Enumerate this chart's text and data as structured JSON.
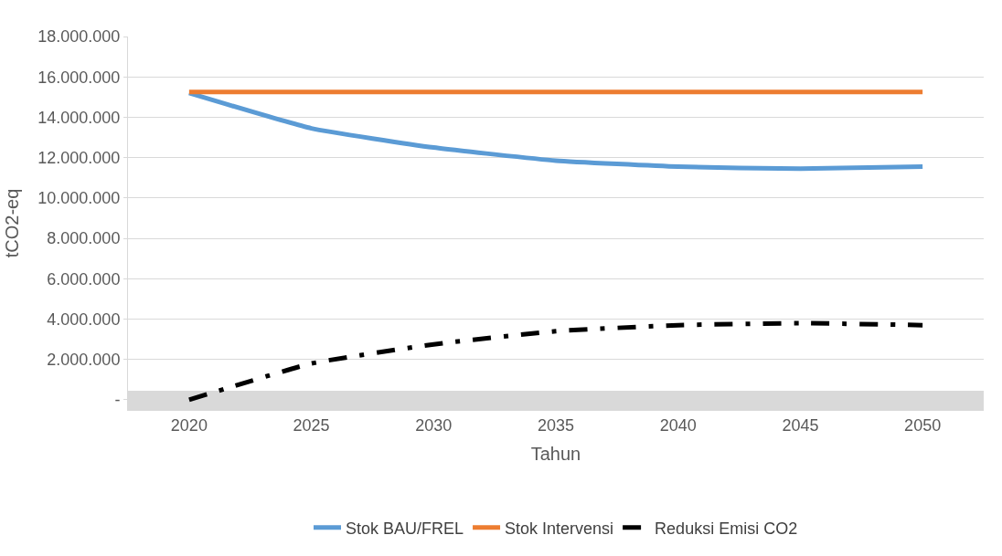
{
  "chart_data": {
    "type": "line",
    "xlabel": "Tahun",
    "ylabel": "tCO2-eq",
    "categories": [
      "2020",
      "2025",
      "2030",
      "2035",
      "2040",
      "2045",
      "2050"
    ],
    "series": [
      {
        "name": "Stok BAU/FREL",
        "color": "#5b9bd5",
        "values": [
          15200000,
          13450000,
          12500000,
          11850000,
          11550000,
          11450000,
          11550000
        ]
      },
      {
        "name": "Stok Intervensi",
        "color": "#ed7d31",
        "values": [
          15250000,
          15250000,
          15250000,
          15250000,
          15250000,
          15250000,
          15250000
        ]
      },
      {
        "name": "Reduksi Emisi CO2",
        "color": "#000000",
        "line_style": "dashed",
        "values": [
          0,
          1800000,
          2750000,
          3400000,
          3700000,
          3800000,
          3700000
        ]
      }
    ],
    "ylim": [
      -500000,
      18000000
    ],
    "yticks": [
      {
        "value": 0,
        "label": "-"
      },
      {
        "value": 2000000,
        "label": "2.000.000"
      },
      {
        "value": 4000000,
        "label": "4.000.000"
      },
      {
        "value": 6000000,
        "label": "6.000.000"
      },
      {
        "value": 8000000,
        "label": "8.000.000"
      },
      {
        "value": 10000000,
        "label": "10.000.000"
      },
      {
        "value": 12000000,
        "label": "12.000.000"
      },
      {
        "value": 14000000,
        "label": "14.000.000"
      },
      {
        "value": 16000000,
        "label": "16.000.000"
      },
      {
        "value": 18000000,
        "label": "18.000.000"
      }
    ],
    "bands": [
      {
        "axis": "y",
        "from": -500000,
        "to": 450000,
        "color": "#d9d9d9"
      }
    ],
    "grid": "y",
    "legend": "bottom",
    "marker": "none",
    "line_style": "solid"
  }
}
